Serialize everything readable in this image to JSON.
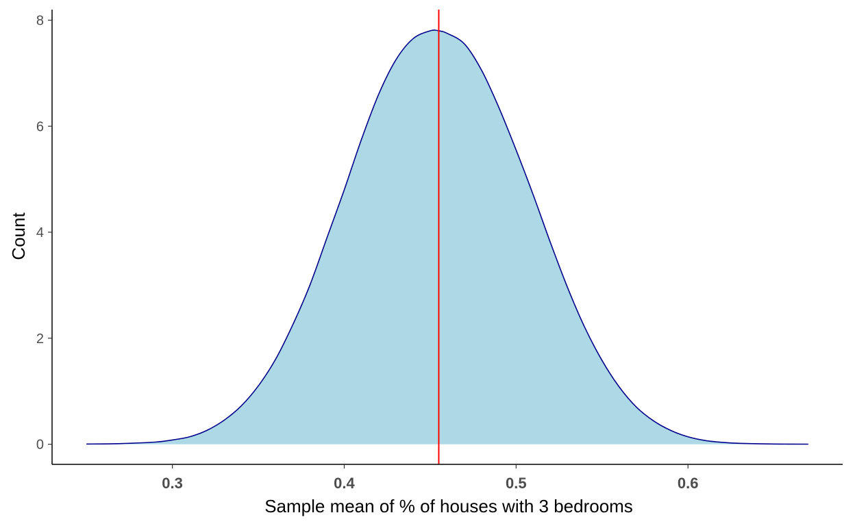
{
  "chart_data": {
    "type": "area",
    "title": "",
    "xlabel": "Sample mean of % of houses with 3 bedrooms",
    "ylabel": "Count",
    "xlim": [
      0.23,
      0.69
    ],
    "ylim": [
      -0.38,
      8.2
    ],
    "x_ticks": [
      0.3,
      0.4,
      0.5,
      0.6
    ],
    "x_tick_labels": [
      "0.3",
      "0.4",
      "0.5",
      "0.6"
    ],
    "y_ticks": [
      0,
      2,
      4,
      6,
      8
    ],
    "y_tick_labels": [
      "0",
      "2",
      "4",
      "6",
      "8"
    ],
    "grid": false,
    "reference_line": {
      "x": 0.455,
      "color": "#ff0000"
    },
    "series": [
      {
        "fill": "#add8e6",
        "stroke": "#00008b",
        "x": [
          0.25,
          0.27,
          0.29,
          0.3,
          0.31,
          0.32,
          0.33,
          0.34,
          0.35,
          0.36,
          0.37,
          0.38,
          0.39,
          0.4,
          0.41,
          0.42,
          0.43,
          0.44,
          0.45,
          0.455,
          0.46,
          0.47,
          0.48,
          0.49,
          0.5,
          0.51,
          0.52,
          0.53,
          0.54,
          0.55,
          0.56,
          0.57,
          0.58,
          0.59,
          0.6,
          0.61,
          0.62,
          0.63,
          0.65,
          0.67
        ],
        "y": [
          0.003,
          0.012,
          0.04,
          0.08,
          0.14,
          0.26,
          0.45,
          0.72,
          1.1,
          1.6,
          2.25,
          3.0,
          3.9,
          4.8,
          5.75,
          6.6,
          7.25,
          7.65,
          7.8,
          7.8,
          7.75,
          7.55,
          7.05,
          6.35,
          5.55,
          4.7,
          3.8,
          2.95,
          2.2,
          1.58,
          1.08,
          0.7,
          0.44,
          0.26,
          0.14,
          0.07,
          0.035,
          0.016,
          0.004,
          0.001
        ]
      }
    ]
  }
}
